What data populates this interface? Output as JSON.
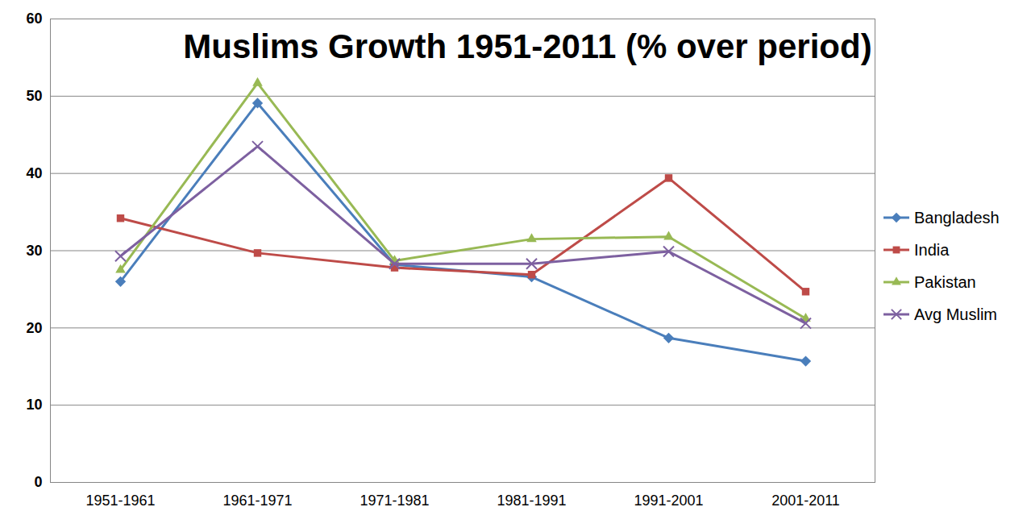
{
  "chart_data": {
    "type": "line",
    "title": "Muslims Growth 1951-2011 (% over period)",
    "categories": [
      "1951-1961",
      "1961-1971",
      "1971-1981",
      "1981-1991",
      "1991-2001",
      "2001-2011"
    ],
    "series": [
      {
        "name": "Bangladesh",
        "color": "#4a7ebb",
        "marker": "diamond",
        "values": [
          26.0,
          49.1,
          28.2,
          26.6,
          18.7,
          15.7
        ]
      },
      {
        "name": "India",
        "color": "#be4b48",
        "marker": "square",
        "values": [
          34.2,
          29.7,
          27.8,
          26.9,
          39.4,
          24.7
        ]
      },
      {
        "name": "Pakistan",
        "color": "#98b954",
        "marker": "triangle",
        "values": [
          27.5,
          51.7,
          28.7,
          31.5,
          31.8,
          21.2
        ]
      },
      {
        "name": "Avg Muslim",
        "color": "#7d60a0",
        "marker": "x",
        "values": [
          29.3,
          43.5,
          28.3,
          28.3,
          29.9,
          20.6
        ]
      }
    ],
    "ylim": [
      0,
      60
    ],
    "yticks": [
      0,
      10,
      20,
      30,
      40,
      50,
      60
    ],
    "grid": true,
    "legend": "right"
  }
}
